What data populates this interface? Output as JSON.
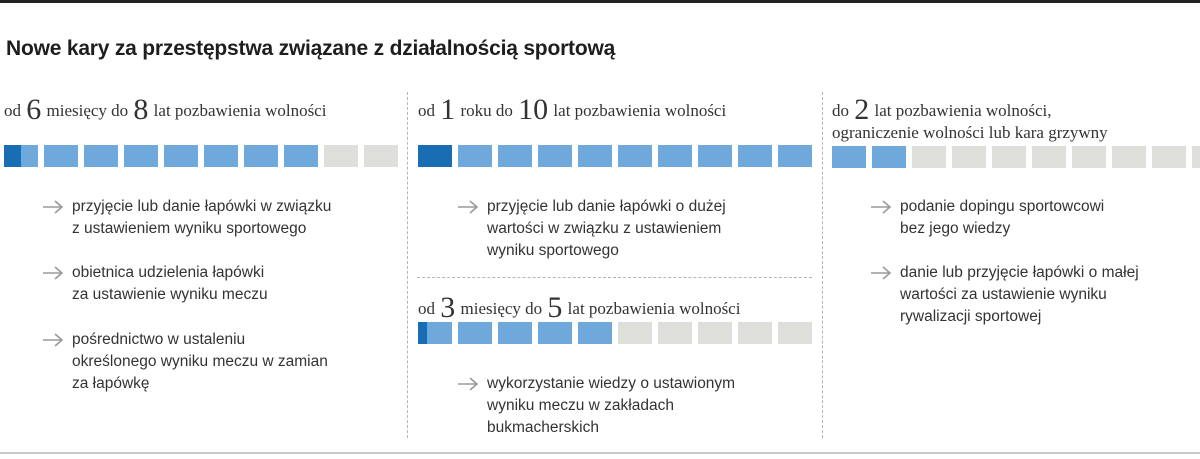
{
  "title": "Nowe kary za przestępstwa związane z działalnością sportową",
  "colors": {
    "filled": "#6fa9dc",
    "dark": "#1a6db2",
    "empty": "#dededb"
  },
  "columns": [
    {
      "heading": {
        "p1": "od ",
        "n1": "6",
        "p2": " miesięcy do ",
        "n2": "8",
        "p3": " lat pozbawienia wolności"
      },
      "bar": {
        "total": 10,
        "filled": 8,
        "dark_fraction": 0.5
      },
      "items": [
        [
          "przyjęcie lub danie łapówki w związku",
          "z ustawieniem wyniku sportowego"
        ],
        [
          "obietnica udzielenia łapówki",
          "za ustawienie wyniku meczu"
        ],
        [
          "pośrednictwo w ustaleniu",
          "określonego wyniku meczu w zamian",
          "za łapówkę"
        ]
      ]
    },
    {
      "heading": {
        "p1": "od ",
        "n1": "1",
        "p2": " roku do ",
        "n2": "10",
        "p3": " lat pozbawienia wolności"
      },
      "bar": {
        "total": 10,
        "filled": 10,
        "dark_fraction": 1.0
      },
      "items": [
        [
          "przyjęcie lub danie łapówki o dużej",
          "wartości w związku z ustawieniem",
          "wyniku sportowego"
        ]
      ]
    },
    {
      "heading": {
        "p1": "od ",
        "n1": "3",
        "p2": " miesięcy do ",
        "n2": "5",
        "p3": " lat pozbawienia wolności"
      },
      "bar": {
        "total": 10,
        "filled": 5,
        "dark_fraction": 0.25
      },
      "items": [
        [
          "wykorzystanie wiedzy o ustawionym",
          "wyniku meczu w zakładach",
          "bukmacherskich"
        ]
      ]
    },
    {
      "heading": {
        "p1": "do ",
        "n1": "2",
        "p2": " lat pozbawienia wolności,",
        "line2": "ograniczenie wolności lub kara grzywny"
      },
      "bar": {
        "total": 10,
        "filled": 2,
        "dark_fraction": 0
      },
      "items": [
        [
          "podanie dopingu sportowcowi",
          "bez jego wiedzy"
        ],
        [
          "danie lub przyjęcie łapówki o małej",
          "wartości za ustawienie wyniku",
          "rywalizacji sportowej"
        ]
      ]
    }
  ]
}
